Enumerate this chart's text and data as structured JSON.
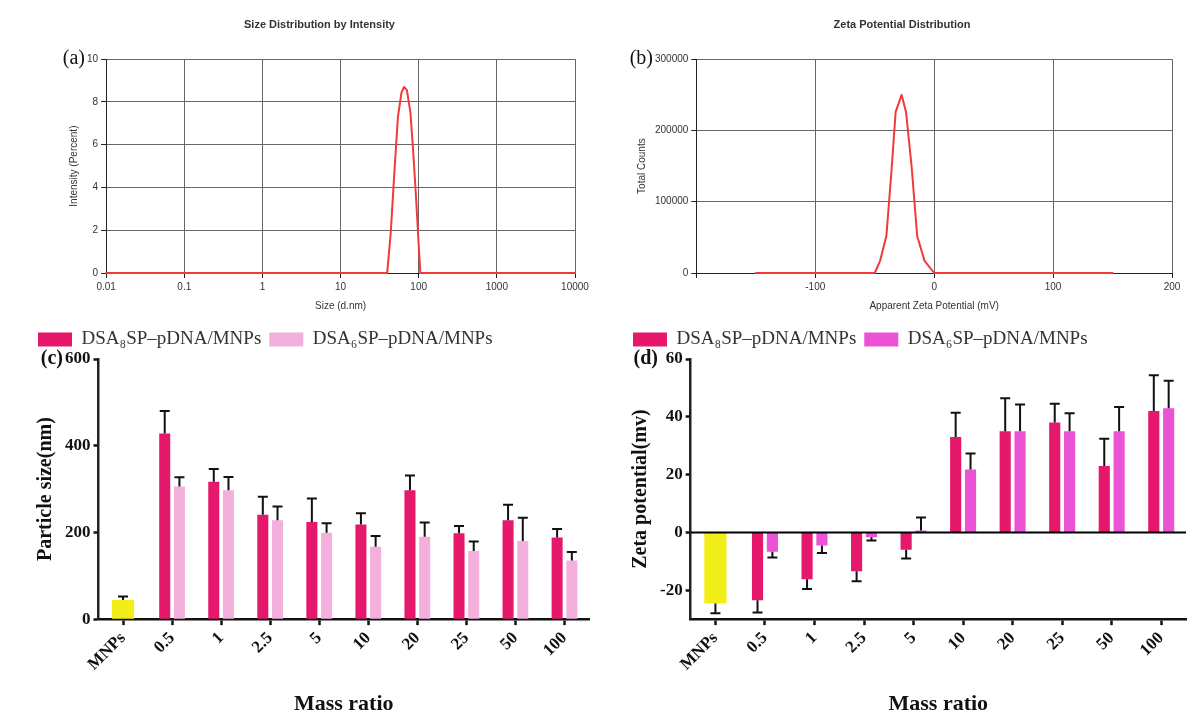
{
  "chart_data": [
    {
      "type": "line",
      "title": "Size Distribution by Intensity",
      "xlabel": "Size (d.nm)",
      "ylabel": "Intensity (Percent)",
      "annotations": [
        "(a)"
      ],
      "log": "x",
      "grid": true,
      "marker": "none",
      "line_style": "solid",
      "legend": false,
      "xlim": [
        0.01,
        10000
      ],
      "xticks": [
        0.01,
        0.1,
        1,
        10,
        100,
        1000,
        10000
      ],
      "ylim": [
        0,
        10
      ],
      "yticks": [
        0,
        2,
        4,
        6,
        8,
        10
      ],
      "series": [
        {
          "color": "#f03a3a",
          "x": [
            0.01,
            39.5,
            43.9,
            48.8,
            54.2,
            60.3,
            64.9,
            70.6,
            78.4,
            85.3,
            92.9,
            100,
            105,
            10000
          ],
          "values": [
            0,
            0,
            1.9,
            4.7,
            7.3,
            8.45,
            8.7,
            8.55,
            7.5,
            5.6,
            3.4,
            1.3,
            0,
            0
          ]
        }
      ]
    },
    {
      "type": "line",
      "title": "Zeta Potential Distribution",
      "xlabel": "Apparent Zeta Potential (mV)",
      "ylabel": "Total Counts",
      "annotations": [
        "(b)"
      ],
      "grid": true,
      "marker": "none",
      "line_style": "solid",
      "legend": false,
      "xlim": [
        -200,
        200
      ],
      "xticks": [
        {
          "value": -200,
          "label": null
        },
        -100,
        0,
        100,
        200
      ],
      "ylim": [
        0,
        300000
      ],
      "yticks": [
        0,
        100000,
        200000,
        300000
      ],
      "series": [
        {
          "color": "#f03a3a",
          "x": [
            -150,
            -50,
            -45.5,
            -40.2,
            -36.1,
            -32.4,
            -27.4,
            -23.7,
            -19,
            -14.3,
            -8.1,
            0,
            150
          ],
          "values": [
            0,
            0,
            17000,
            52000,
            139000,
            226000,
            250000,
            226000,
            150000,
            52000,
            17000,
            0,
            0
          ]
        }
      ]
    },
    {
      "type": "bar",
      "xlabel": "Mass ratio",
      "ylabel": "Particle size(nm)",
      "annotations": [
        "(c)"
      ],
      "grid": false,
      "legend": "top left",
      "categories": [
        "MNPs",
        "0.5",
        "1",
        "2.5",
        "5",
        "10",
        "20",
        "25",
        "50",
        "100"
      ],
      "ylim": [
        0,
        600
      ],
      "yticks": [
        0,
        200,
        400,
        600
      ],
      "series": [
        {
          "color": "#f2ee1a",
          "values": [
            44,
            null,
            null,
            null,
            null,
            null,
            null,
            null,
            null,
            null
          ],
          "errors": [
            [
              44,
              52
            ],
            null,
            null,
            null,
            null,
            null,
            null,
            null,
            null,
            null
          ]
        },
        {
          "name": "DSA₈SP–pDNA/MNPs",
          "color": "#e5186c",
          "values": [
            null,
            428,
            317,
            241,
            224,
            218,
            297,
            198,
            228,
            188
          ],
          "errors": [
            null,
            [
              428,
              480
            ],
            [
              317,
              346
            ],
            [
              241,
              282
            ],
            [
              224,
              278
            ],
            [
              218,
              244
            ],
            [
              297,
              331
            ],
            [
              198,
              215
            ],
            [
              228,
              264
            ],
            [
              188,
              208
            ]
          ]
        },
        {
          "name": "DSA₆SP–pDNA/MNPs",
          "color": "#f4b0dc",
          "values": [
            null,
            306,
            297,
            228,
            199,
            167,
            190,
            157,
            180,
            135
          ],
          "errors": [
            null,
            [
              306,
              327
            ],
            [
              297,
              328
            ],
            [
              228,
              260
            ],
            [
              199,
              221
            ],
            [
              167,
              192
            ],
            [
              190,
              223
            ],
            [
              157,
              179
            ],
            [
              180,
              234
            ],
            [
              135,
              155
            ]
          ]
        }
      ]
    },
    {
      "type": "bar",
      "xlabel": "Mass ratio",
      "ylabel": "Zeta potential(mv)",
      "annotations": [
        "(d)"
      ],
      "grid": false,
      "legend": "top left",
      "categories": [
        "MNPs",
        "0.5",
        "1",
        "2.5",
        "5",
        "10",
        "20",
        "25",
        "50",
        "100"
      ],
      "ylim": [
        -30,
        60
      ],
      "yticks": [
        -20,
        0,
        20,
        40,
        60
      ],
      "ref_lines": [
        {
          "axis": "y",
          "value": 0,
          "color": "#000000"
        }
      ],
      "series": [
        {
          "color": "#f2ee1a",
          "values": [
            -24.6,
            null,
            null,
            null,
            null,
            null,
            null,
            null,
            null,
            null
          ],
          "errors": [
            [
              -28,
              -24.6
            ],
            null,
            null,
            null,
            null,
            null,
            null,
            null,
            null,
            null
          ]
        },
        {
          "name": "DSA₈SP–pDNA/MNPs",
          "color": "#e5186c",
          "values": [
            null,
            -23.5,
            -16.2,
            -13.4,
            -6,
            33,
            35,
            38,
            23,
            42
          ],
          "errors": [
            null,
            [
              -27.7,
              -23.5
            ],
            [
              -19.6,
              -16.2
            ],
            [
              -16.9,
              -13.4
            ],
            [
              -9,
              -6
            ],
            [
              33,
              41.4
            ],
            [
              35,
              46.4
            ],
            [
              38,
              44.5
            ],
            [
              23,
              32.4
            ],
            [
              42,
              54.4
            ]
          ]
        },
        {
          "name": "DSA₆SP–pDNA/MNPs",
          "color": "#ec52d4",
          "values": [
            null,
            -6.7,
            -4.5,
            -1.7,
            0.7,
            21.8,
            35,
            35,
            35,
            43
          ],
          "errors": [
            null,
            [
              -8.7,
              -6.7
            ],
            [
              -7.1,
              -4.5
            ],
            [
              -2.8,
              -1.7
            ],
            [
              0.7,
              5.2
            ],
            [
              21.8,
              27.3
            ],
            [
              35,
              44.3
            ],
            [
              35,
              41.2
            ],
            [
              35,
              43.4
            ],
            [
              43,
              52.5
            ]
          ]
        }
      ]
    }
  ]
}
